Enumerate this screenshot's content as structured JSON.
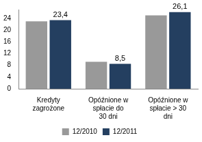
{
  "chart_data": {
    "type": "bar",
    "categories": [
      "Kredyty zagrożone",
      "Opóźnione w spłacie do 30 dni",
      "Opóźnione w spłacie > 30 dni"
    ],
    "series": [
      {
        "name": "12/2010",
        "color": "#999999",
        "values": [
          23.0,
          9.2,
          25.0
        ]
      },
      {
        "name": "12/2011",
        "color": "#243f60",
        "values": [
          23.4,
          8.5,
          26.1
        ],
        "data_labels": true,
        "value_labels": [
          "23,4",
          "8,5",
          "26,1"
        ]
      }
    ],
    "ylim": [
      0,
      27
    ],
    "yticks": [
      0,
      4,
      8,
      12,
      16,
      20,
      24
    ],
    "grid": false,
    "legend": "bottom"
  }
}
